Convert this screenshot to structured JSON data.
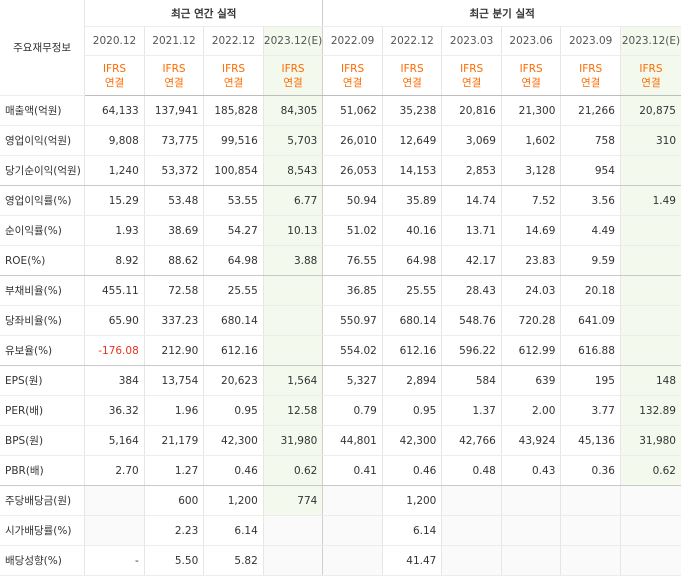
{
  "header": {
    "row_label": "주요재무정보",
    "annual_group": "최근 연간 실적",
    "quarterly_group": "최근 분기 실적",
    "annual_periods": [
      "2020.12",
      "2021.12",
      "2022.12",
      "2023.12(E)"
    ],
    "quarterly_periods": [
      "2022.09",
      "2022.12",
      "2023.03",
      "2023.06",
      "2023.09",
      "2023.12(E)"
    ],
    "ifrs_line1": "IFRS",
    "ifrs_line2": "연결"
  },
  "rows": [
    {
      "label": "매출액(억원)",
      "values": [
        "64,133",
        "137,941",
        "185,828",
        "84,305",
        "51,062",
        "35,238",
        "20,816",
        "21,300",
        "21,266",
        "20,875"
      ]
    },
    {
      "label": "영업이익(억원)",
      "values": [
        "9,808",
        "73,775",
        "99,516",
        "5,703",
        "26,010",
        "12,649",
        "3,069",
        "1,602",
        "758",
        "310"
      ]
    },
    {
      "label": "당기순이익(억원)",
      "values": [
        "1,240",
        "53,372",
        "100,854",
        "8,543",
        "26,053",
        "14,153",
        "2,853",
        "3,128",
        "954",
        ""
      ]
    },
    {
      "label": "영업이익률(%)",
      "values": [
        "15.29",
        "53.48",
        "53.55",
        "6.77",
        "50.94",
        "35.89",
        "14.74",
        "7.52",
        "3.56",
        "1.49"
      ]
    },
    {
      "label": "순이익률(%)",
      "values": [
        "1.93",
        "38.69",
        "54.27",
        "10.13",
        "51.02",
        "40.16",
        "13.71",
        "14.69",
        "4.49",
        ""
      ]
    },
    {
      "label": "ROE(%)",
      "values": [
        "8.92",
        "88.62",
        "64.98",
        "3.88",
        "76.55",
        "64.98",
        "42.17",
        "23.83",
        "9.59",
        ""
      ]
    },
    {
      "label": "부채비율(%)",
      "values": [
        "455.11",
        "72.58",
        "25.55",
        "",
        "36.85",
        "25.55",
        "28.43",
        "24.03",
        "20.18",
        ""
      ]
    },
    {
      "label": "당좌비율(%)",
      "values": [
        "65.90",
        "337.23",
        "680.14",
        "",
        "550.97",
        "680.14",
        "548.76",
        "720.28",
        "641.09",
        ""
      ]
    },
    {
      "label": "유보율(%)",
      "values": [
        "-176.08",
        "212.90",
        "612.16",
        "",
        "554.02",
        "612.16",
        "596.22",
        "612.99",
        "616.88",
        ""
      ]
    },
    {
      "label": "EPS(원)",
      "values": [
        "384",
        "13,754",
        "20,623",
        "1,564",
        "5,327",
        "2,894",
        "584",
        "639",
        "195",
        "148"
      ]
    },
    {
      "label": "PER(배)",
      "values": [
        "36.32",
        "1.96",
        "0.95",
        "12.58",
        "0.79",
        "0.95",
        "1.37",
        "2.00",
        "3.77",
        "132.89"
      ]
    },
    {
      "label": "BPS(원)",
      "values": [
        "5,164",
        "21,179",
        "42,300",
        "31,980",
        "44,801",
        "42,300",
        "42,766",
        "43,924",
        "45,136",
        "31,980"
      ]
    },
    {
      "label": "PBR(배)",
      "values": [
        "2.70",
        "1.27",
        "0.46",
        "0.62",
        "0.41",
        "0.46",
        "0.48",
        "0.43",
        "0.36",
        "0.62"
      ]
    },
    {
      "label": "주당배당금(원)",
      "values": [
        "",
        "600",
        "1,200",
        "774",
        "",
        "1,200",
        "",
        "",
        "",
        ""
      ]
    },
    {
      "label": "시가배당률(%)",
      "values": [
        "",
        "2.23",
        "6.14",
        "",
        "",
        "6.14",
        "",
        "",
        "",
        ""
      ]
    },
    {
      "label": "배당성향(%)",
      "values": [
        "-",
        "5.50",
        "5.82",
        "",
        "",
        "41.47",
        "",
        "",
        "",
        ""
      ]
    }
  ],
  "colors": {
    "ifrs": "#ff6a00",
    "negative": "#e8321e",
    "estimate_bg": "#f3f9ed"
  }
}
